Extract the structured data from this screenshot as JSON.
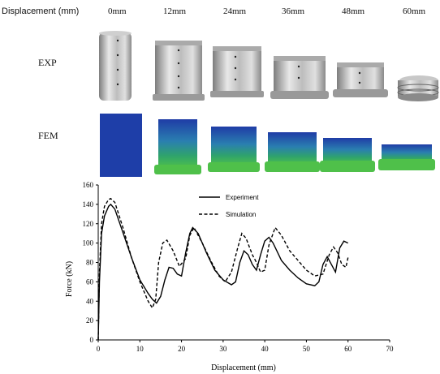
{
  "header": {
    "title": "Displacement (mm)",
    "columns": [
      "0mm",
      "12mm",
      "24mm",
      "36mm",
      "48mm",
      "60mm"
    ]
  },
  "rows": {
    "exp_label": "EXP",
    "fem_label": "FEM"
  },
  "colors": {
    "metal_light": "#e4e4e4",
    "metal_dark": "#8c8c8c",
    "fem_blue": "#1e3ea8",
    "fem_green": "#36b24a"
  },
  "chart_data": {
    "type": "line",
    "xlabel": "Displacement (mm)",
    "ylabel": "Force (kN)",
    "xlim": [
      0,
      70
    ],
    "ylim": [
      0,
      160
    ],
    "xticks": [
      0,
      10,
      20,
      30,
      40,
      50,
      60,
      70
    ],
    "yticks": [
      0,
      20,
      40,
      60,
      80,
      100,
      120,
      140,
      160
    ],
    "grid": false,
    "legend_position": "top-center",
    "series": [
      {
        "name": "Experiment",
        "style": "solid",
        "points": [
          [
            0,
            0
          ],
          [
            0.3,
            60
          ],
          [
            0.8,
            110
          ],
          [
            1.5,
            128
          ],
          [
            2.5,
            138
          ],
          [
            3,
            140
          ],
          [
            4,
            135
          ],
          [
            6,
            110
          ],
          [
            8,
            85
          ],
          [
            10,
            62
          ],
          [
            12,
            48
          ],
          [
            13,
            42
          ],
          [
            14,
            38
          ],
          [
            15,
            45
          ],
          [
            16,
            62
          ],
          [
            17,
            75
          ],
          [
            18,
            74
          ],
          [
            19,
            68
          ],
          [
            20,
            66
          ],
          [
            21,
            90
          ],
          [
            22,
            110
          ],
          [
            22.7,
            116
          ],
          [
            24,
            110
          ],
          [
            26,
            90
          ],
          [
            28,
            72
          ],
          [
            30,
            62
          ],
          [
            32,
            57
          ],
          [
            33,
            60
          ],
          [
            34,
            80
          ],
          [
            35,
            92
          ],
          [
            36,
            88
          ],
          [
            37,
            78
          ],
          [
            38,
            72
          ],
          [
            39,
            88
          ],
          [
            40,
            102
          ],
          [
            41,
            106
          ],
          [
            42,
            100
          ],
          [
            44,
            82
          ],
          [
            46,
            72
          ],
          [
            48,
            64
          ],
          [
            50,
            58
          ],
          [
            52,
            56
          ],
          [
            53,
            60
          ],
          [
            54,
            78
          ],
          [
            55,
            86
          ],
          [
            56,
            78
          ],
          [
            57,
            70
          ],
          [
            58,
            95
          ],
          [
            59,
            102
          ],
          [
            60,
            100
          ]
        ]
      },
      {
        "name": "Simulation",
        "style": "dashed",
        "points": [
          [
            0,
            0
          ],
          [
            0.3,
            70
          ],
          [
            0.8,
            120
          ],
          [
            1.5,
            138
          ],
          [
            2.5,
            145
          ],
          [
            3,
            146
          ],
          [
            4,
            142
          ],
          [
            6,
            115
          ],
          [
            8,
            85
          ],
          [
            10,
            60
          ],
          [
            12,
            40
          ],
          [
            13,
            33
          ],
          [
            13.8,
            42
          ],
          [
            14.5,
            80
          ],
          [
            15.5,
            100
          ],
          [
            16.5,
            103
          ],
          [
            18,
            92
          ],
          [
            19.5,
            76
          ],
          [
            21,
            84
          ],
          [
            22,
            108
          ],
          [
            23,
            116
          ],
          [
            25,
            100
          ],
          [
            27,
            82
          ],
          [
            29,
            66
          ],
          [
            30.5,
            60
          ],
          [
            32,
            70
          ],
          [
            33.5,
            95
          ],
          [
            34.5,
            110
          ],
          [
            35.5,
            105
          ],
          [
            37,
            88
          ],
          [
            38,
            80
          ],
          [
            39,
            70
          ],
          [
            40,
            72
          ],
          [
            41,
            98
          ],
          [
            42.5,
            116
          ],
          [
            44,
            108
          ],
          [
            46,
            92
          ],
          [
            48,
            82
          ],
          [
            50,
            72
          ],
          [
            52,
            66
          ],
          [
            54,
            68
          ],
          [
            55.5,
            88
          ],
          [
            56.5,
            96
          ],
          [
            57.5,
            90
          ],
          [
            58.5,
            78
          ],
          [
            59.5,
            75
          ],
          [
            60,
            85
          ]
        ]
      }
    ],
    "annotations": []
  }
}
